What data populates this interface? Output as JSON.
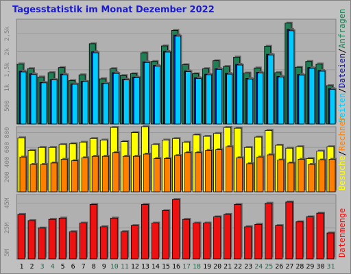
{
  "title": "Tagesstatistik im Monat Dezember 2022",
  "colors": {
    "anfragen": "#1f7f55",
    "dateien": "#17178c",
    "seiten": "#00ccff",
    "rechner": "#ff8000",
    "besuche": "#ffff00",
    "datenmenge": "#ee1111",
    "weekend_label": "#1a6f4a",
    "weekday_label": "#000000",
    "title": "#1a1ad2"
  },
  "chart_data": [
    {
      "type": "bar",
      "panel": "top",
      "categories": [
        "1",
        "2",
        "3",
        "4",
        "5",
        "6",
        "7",
        "8",
        "9",
        "10",
        "11",
        "12",
        "13",
        "14",
        "15",
        "16",
        "17",
        "18",
        "19",
        "20",
        "21",
        "22",
        "23",
        "24",
        "25",
        "26",
        "27",
        "28",
        "29",
        "30",
        "31"
      ],
      "weekend_days": [
        "3",
        "4",
        "10",
        "11",
        "17",
        "18",
        "24",
        "25",
        "31"
      ],
      "y_ticks": [
        "500",
        "1k",
        "1,5k",
        "2k",
        "2,5k"
      ],
      "ylim": [
        0,
        2900
      ],
      "series": [
        {
          "name": "Anfragen",
          "values": [
            1660,
            1530,
            1300,
            1420,
            1560,
            1200,
            1360,
            2220,
            1250,
            1530,
            1340,
            1390,
            1970,
            1730,
            2160,
            2590,
            1640,
            1390,
            1530,
            1750,
            1590,
            1850,
            1410,
            1550,
            2150,
            1420,
            2790,
            1570,
            1730,
            1660,
            1060
          ]
        },
        {
          "name": "Dateien",
          "values": [
            1460,
            1390,
            1150,
            1230,
            1380,
            1110,
            1180,
            2000,
            1130,
            1420,
            1240,
            1300,
            1720,
            1620,
            2010,
            2460,
            1470,
            1280,
            1380,
            1530,
            1400,
            1650,
            1260,
            1430,
            1930,
            1320,
            2620,
            1370,
            1560,
            1480,
            980
          ]
        },
        {
          "name": "Seiten",
          "values": [
            1440,
            1370,
            1140,
            1220,
            1360,
            1100,
            1170,
            1970,
            1120,
            1400,
            1220,
            1280,
            1700,
            1600,
            1990,
            2430,
            1450,
            1260,
            1360,
            1510,
            1380,
            1630,
            1240,
            1410,
            1910,
            1300,
            2580,
            1350,
            1540,
            1460,
            960
          ]
        }
      ],
      "axis_title_segments": [
        "Seiten",
        "/",
        "Dateien",
        "/",
        "Anfragen"
      ]
    },
    {
      "type": "bar",
      "panel": "middle",
      "categories": [
        "1",
        "2",
        "3",
        "4",
        "5",
        "6",
        "7",
        "8",
        "9",
        "10",
        "11",
        "12",
        "13",
        "14",
        "15",
        "16",
        "17",
        "18",
        "19",
        "20",
        "21",
        "22",
        "23",
        "24",
        "25",
        "26",
        "27",
        "28",
        "29",
        "30",
        "31"
      ],
      "y_ticks": [
        "200",
        "400",
        "600",
        "800"
      ],
      "ylim": [
        0,
        880
      ],
      "series": [
        {
          "name": "Besuche",
          "values": [
            730,
            560,
            600,
            600,
            640,
            650,
            670,
            720,
            700,
            870,
            680,
            800,
            880,
            640,
            700,
            720,
            670,
            770,
            750,
            790,
            870,
            860,
            600,
            740,
            830,
            630,
            590,
            610,
            450,
            550,
            610
          ]
        },
        {
          "name": "Rechner",
          "values": [
            470,
            370,
            370,
            390,
            440,
            420,
            460,
            480,
            480,
            530,
            480,
            480,
            510,
            450,
            450,
            490,
            530,
            530,
            560,
            570,
            610,
            460,
            380,
            470,
            500,
            430,
            390,
            440,
            370,
            430,
            440
          ]
        }
      ],
      "axis_title_segments": [
        "Besuche",
        "/",
        "Rechner"
      ]
    },
    {
      "type": "bar",
      "panel": "bottom",
      "categories": [
        "1",
        "2",
        "3",
        "4",
        "5",
        "6",
        "7",
        "8",
        "9",
        "10",
        "11",
        "12",
        "13",
        "14",
        "15",
        "16",
        "17",
        "18",
        "19",
        "20",
        "21",
        "22",
        "23",
        "24",
        "25",
        "26",
        "27",
        "28",
        "29",
        "30",
        "31"
      ],
      "y_ticks": [
        "5M",
        "25M",
        "45M"
      ],
      "ylim": [
        0,
        52
      ],
      "series": [
        {
          "name": "Datenmenge",
          "values": [
            36,
            31,
            25,
            32,
            33,
            22,
            29,
            44,
            26,
            33,
            22,
            27,
            44,
            29,
            39,
            48,
            32,
            29,
            29,
            34,
            36,
            44,
            26,
            28,
            45,
            27,
            46,
            30,
            34,
            37,
            21
          ]
        }
      ],
      "axis_title_segments": [
        "Datenmenge"
      ]
    }
  ]
}
